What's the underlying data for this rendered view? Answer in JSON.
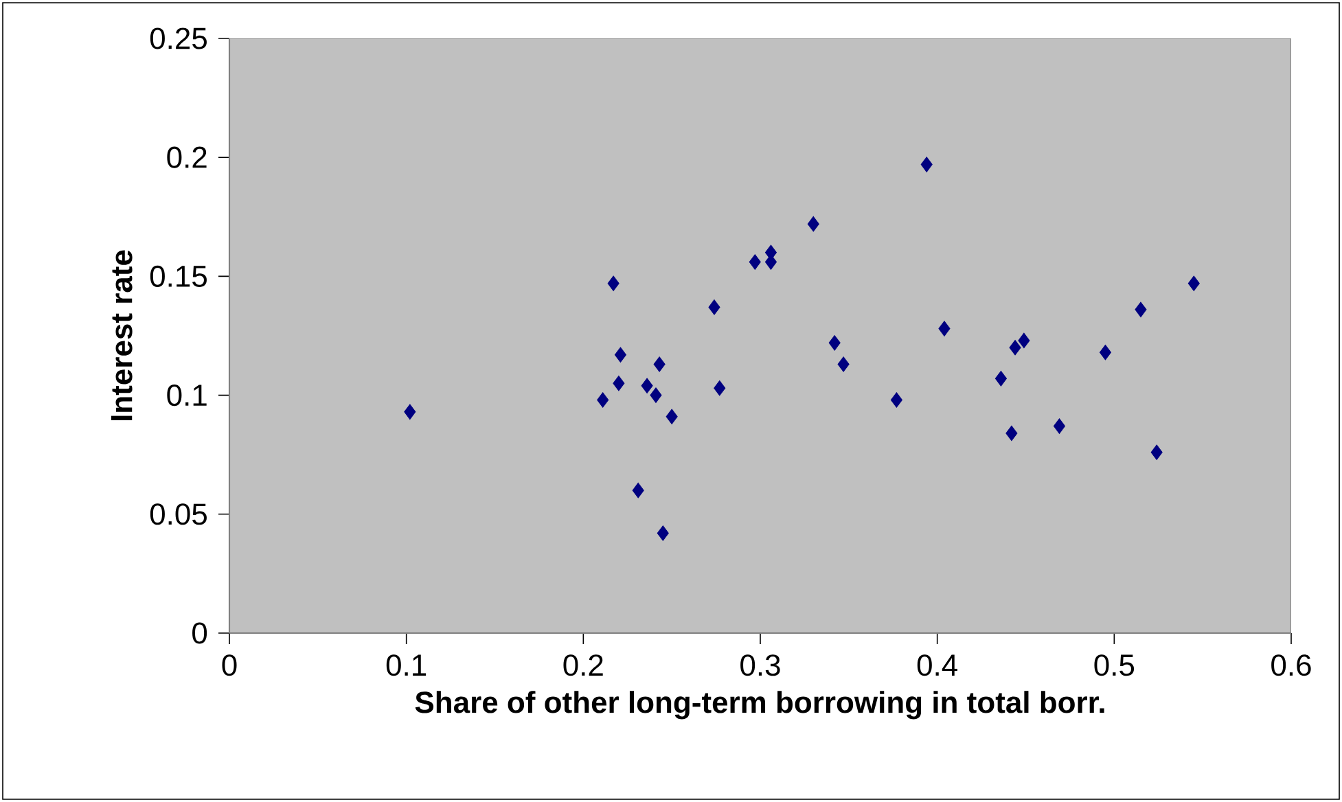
{
  "chart_data": {
    "type": "scatter",
    "xlabel": "Share of other long-term borrowing in total borr.",
    "ylabel": "Interest rate",
    "x": [
      0.102,
      0.217,
      0.221,
      0.22,
      0.211,
      0.243,
      0.236,
      0.241,
      0.25,
      0.231,
      0.245,
      0.274,
      0.277,
      0.297,
      0.306,
      0.306,
      0.33,
      0.342,
      0.347,
      0.377,
      0.394,
      0.404,
      0.436,
      0.442,
      0.444,
      0.449,
      0.469,
      0.495,
      0.515,
      0.524,
      0.545
    ],
    "values": [
      0.093,
      0.147,
      0.117,
      0.105,
      0.098,
      0.113,
      0.104,
      0.1,
      0.091,
      0.06,
      0.042,
      0.137,
      0.103,
      0.156,
      0.16,
      0.156,
      0.172,
      0.122,
      0.113,
      0.098,
      0.197,
      0.128,
      0.107,
      0.084,
      0.12,
      0.123,
      0.087,
      0.118,
      0.136,
      0.076,
      0.147
    ],
    "color": "#000080",
    "marker": "diamond",
    "xlim": [
      0,
      0.6
    ],
    "xticks": [
      0,
      0.1,
      0.2,
      0.3,
      0.4,
      0.5,
      0.6
    ],
    "ylim": [
      0,
      0.25
    ],
    "yticks": [
      0,
      0.05,
      0.1,
      0.15,
      0.2,
      0.25
    ],
    "grid": false
  }
}
